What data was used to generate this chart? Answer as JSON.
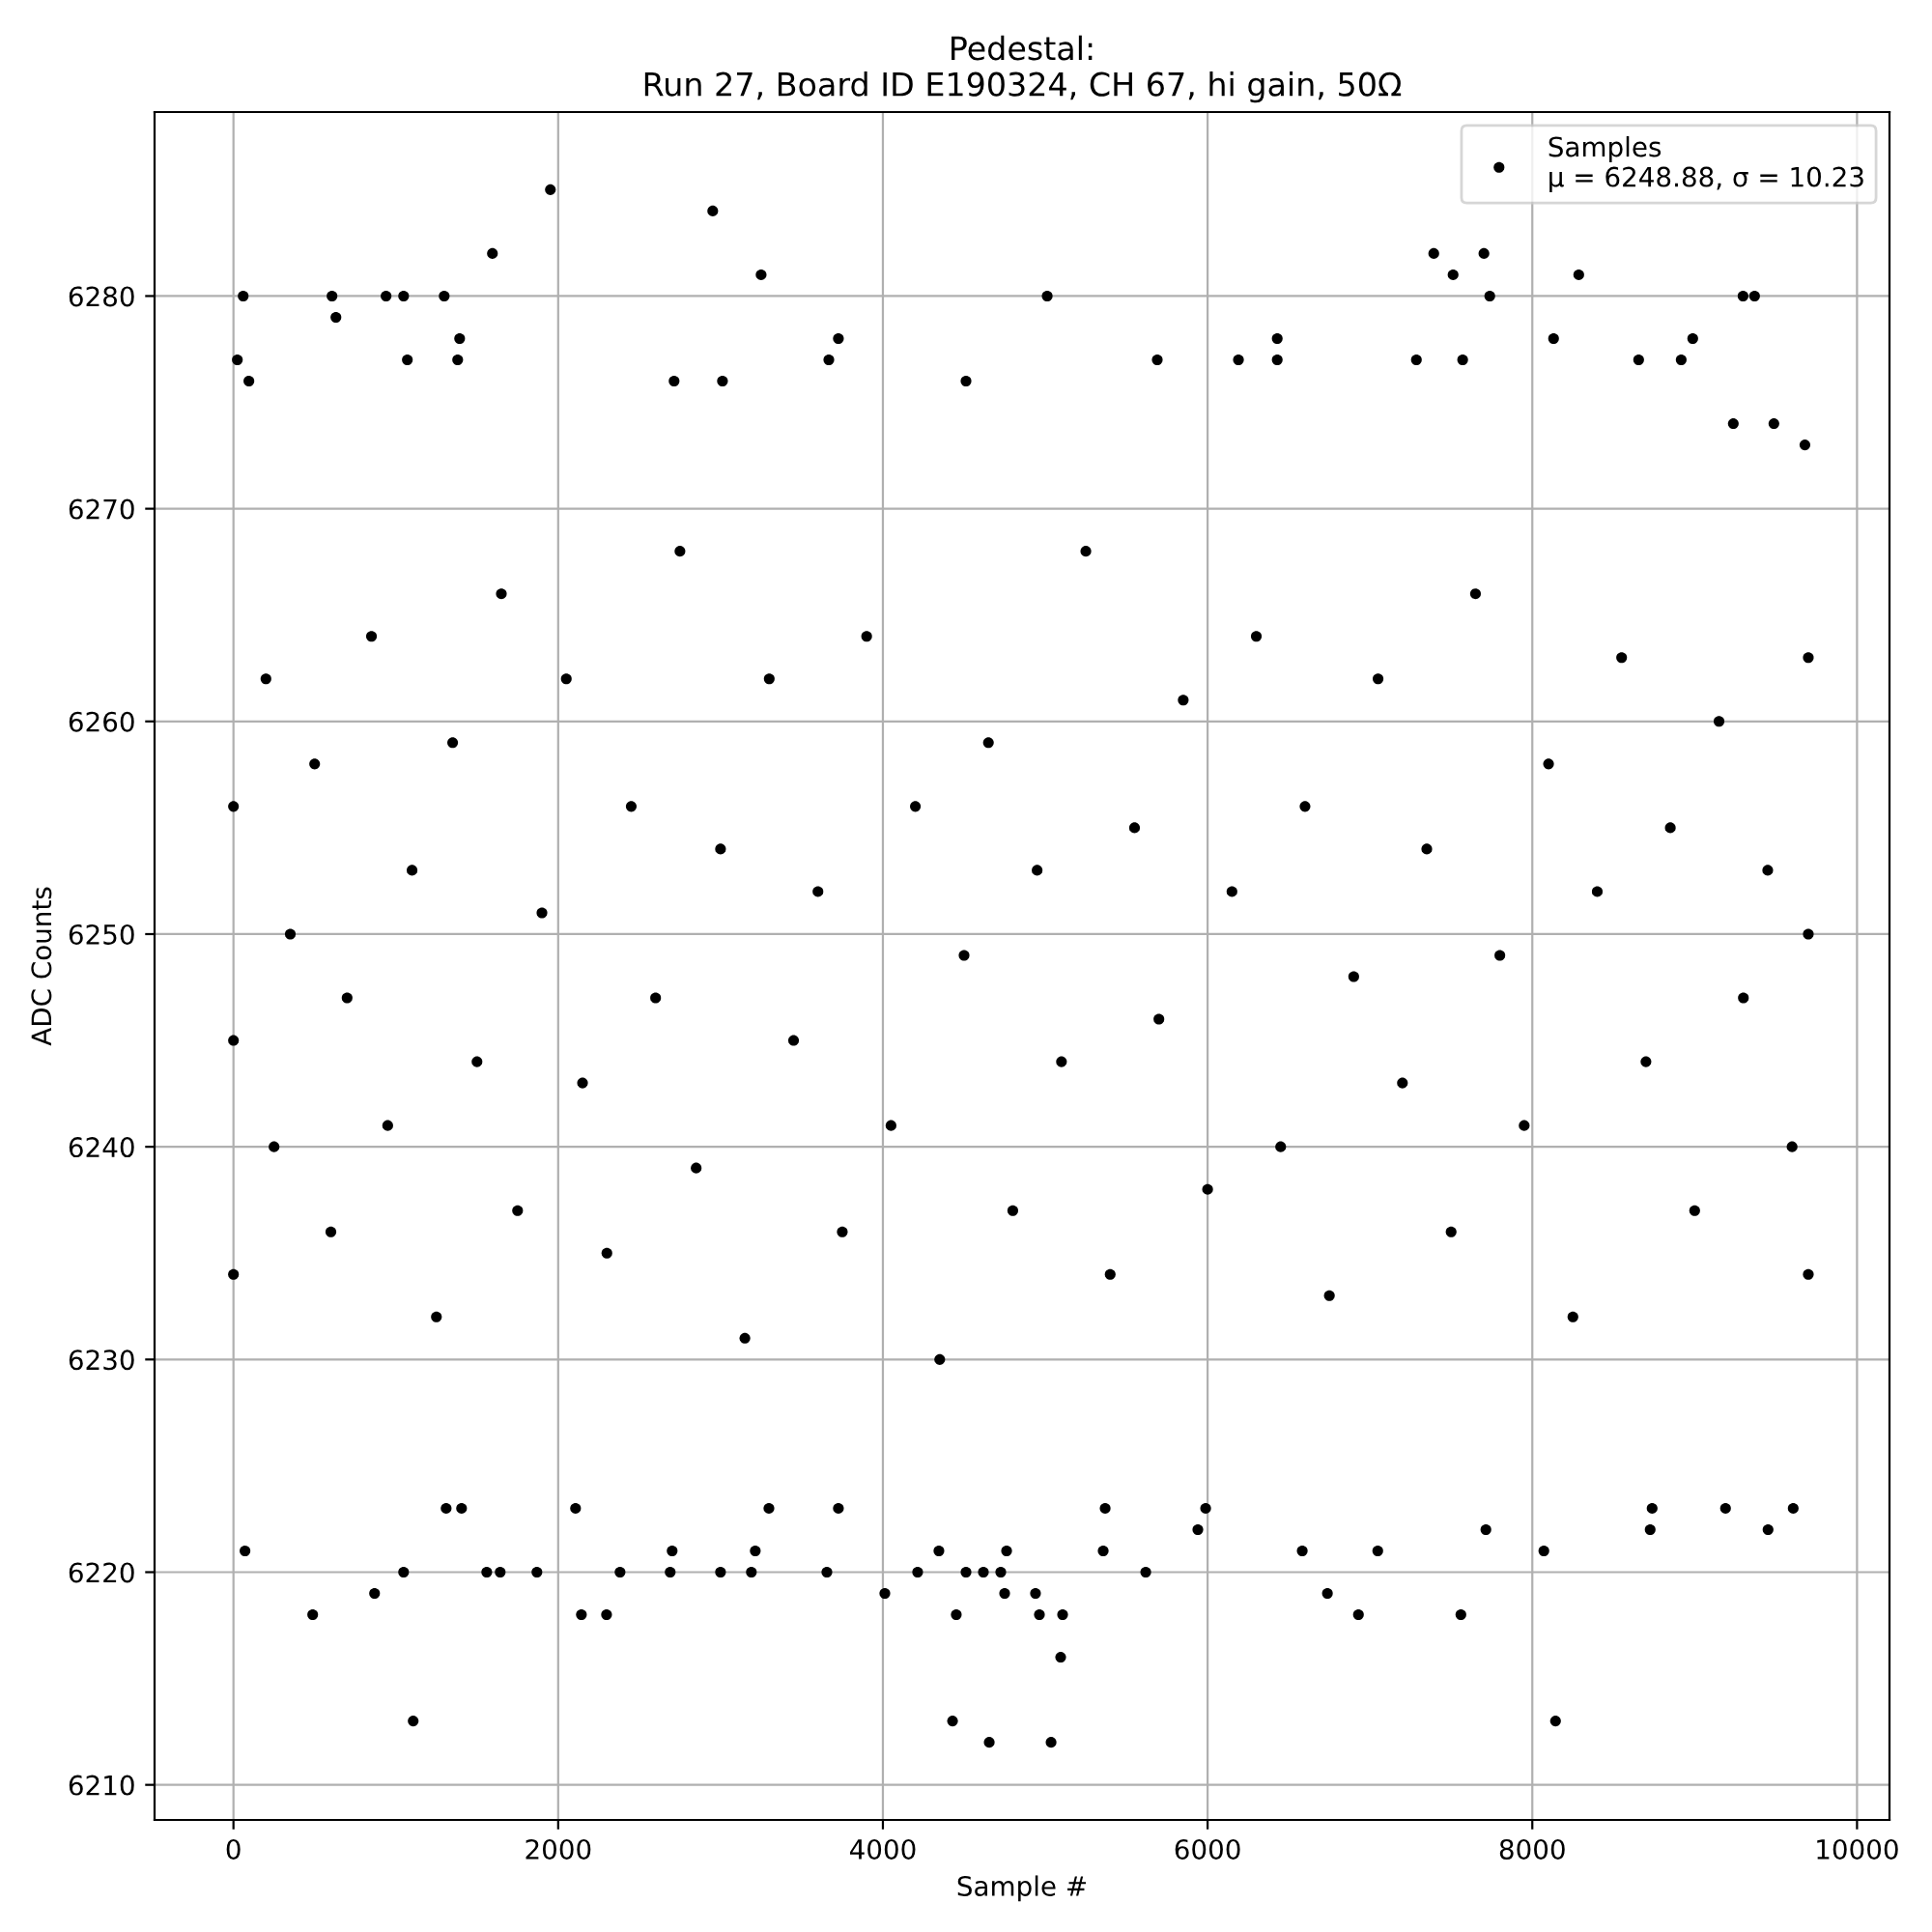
{
  "chart_data": {
    "type": "scatter",
    "title": "Pedestal:\nRun 27, Board ID E190324, CH 67, hi gain, 50Ω",
    "xlabel": "Sample #",
    "ylabel": "ADC Counts",
    "series": [
      {
        "name": "Samples\nμ = 6248.88, σ = 10.23",
        "color": "#000000",
        "marker": "circle",
        "x": [
          24,
          60,
          95,
          1952,
          1595,
          2952,
          3250,
          607,
          631,
          940,
          1048,
          1298,
          1393,
          1381,
          1071,
          3726,
          3667,
          4512,
          2714,
          3012,
          7393,
          7702,
          7512,
          7738,
          8286,
          5012,
          9298,
          9369,
          8131,
          8988,
          6429,
          6429,
          6190,
          5690,
          7286,
          7571,
          8655,
          8917,
          9238,
          9488,
          9679,
          71,
          488,
          1107,
          869,
          1048,
          1560,
          1643,
          1869,
          2143,
          2298,
          2381,
          2690,
          2702,
          3000,
          3190,
          3214,
          3655,
          4012,
          4214,
          4345,
          4429,
          4452,
          4655,
          4512,
          4619,
          4726,
          4750,
          4762,
          1310,
          1405,
          2107,
          3298,
          3726,
          5036,
          5095,
          4940,
          4964,
          5107,
          5619,
          5357,
          6738,
          6929,
          7560,
          8143,
          8071,
          6583,
          7048,
          8726,
          8738,
          9452,
          9607,
          9190,
          7714,
          5940,
          5988,
          5369,
          0,
          0,
          0,
          200,
          250,
          350,
          500,
          600,
          700,
          850,
          950,
          1100,
          1250,
          1350,
          1500,
          1650,
          1750,
          1900,
          2050,
          2150,
          2300,
          2450,
          2600,
          2750,
          2850,
          3000,
          3150,
          3300,
          3450,
          3600,
          3750,
          3900,
          4050,
          4200,
          4350,
          4500,
          4650,
          4800,
          4950,
          5100,
          5250,
          5400,
          5550,
          5700,
          5850,
          6000,
          6150,
          6300,
          6450,
          6600,
          6750,
          6900,
          7050,
          7200,
          7350,
          7500,
          7650,
          7800,
          7950,
          8100,
          8250,
          8400,
          8550,
          8700,
          8850,
          9000,
          9150,
          9300,
          9450,
          9600,
          9700,
          9700,
          9700
        ],
        "values": [
          6277,
          6280,
          6276,
          6285,
          6282,
          6284,
          6281,
          6280,
          6279,
          6280,
          6280,
          6280,
          6278,
          6277,
          6277,
          6278,
          6277,
          6276,
          6276,
          6276,
          6282,
          6282,
          6281,
          6280,
          6281,
          6280,
          6280,
          6280,
          6278,
          6278,
          6278,
          6277,
          6277,
          6277,
          6277,
          6277,
          6277,
          6277,
          6274,
          6274,
          6273,
          6221,
          6218,
          6213,
          6219,
          6220,
          6220,
          6220,
          6220,
          6218,
          6218,
          6220,
          6220,
          6221,
          6220,
          6220,
          6221,
          6220,
          6219,
          6220,
          6221,
          6213,
          6218,
          6212,
          6220,
          6220,
          6220,
          6219,
          6221,
          6223,
          6223,
          6223,
          6223,
          6223,
          6212,
          6216,
          6219,
          6218,
          6218,
          6220,
          6221,
          6219,
          6218,
          6218,
          6213,
          6221,
          6221,
          6221,
          6222,
          6223,
          6222,
          6223,
          6223,
          6222,
          6222,
          6223,
          6223,
          6256,
          6245,
          6234,
          6262,
          6240,
          6250,
          6258,
          6236,
          6247,
          6264,
          6241,
          6253,
          6232,
          6259,
          6244,
          6266,
          6237,
          6251,
          6262,
          6243,
          6235,
          6256,
          6247,
          6268,
          6239,
          6254,
          6231,
          6262,
          6245,
          6252,
          6236,
          6264,
          6241,
          6256,
          6230,
          6249,
          6259,
          6237,
          6253,
          6244,
          6268,
          6234,
          6255,
          6246,
          6261,
          6238,
          6252,
          6264,
          6240,
          6256,
          6233,
          6248,
          6262,
          6243,
          6254,
          6236,
          6266,
          6249,
          6241,
          6258,
          6232,
          6252,
          6263,
          6244,
          6255,
          6237,
          6260,
          6247,
          6253,
          6240,
          6250,
          6263,
          6234
        ]
      }
    ],
    "xlim": [
      -486,
      10200
    ],
    "ylim": [
      6208.35,
      6288.65
    ],
    "xticks": [
      0,
      2000,
      4000,
      6000,
      8000,
      10000
    ],
    "yticks": [
      6210,
      6220,
      6230,
      6240,
      6250,
      6260,
      6270,
      6280
    ],
    "grid": true,
    "legend": "top right"
  }
}
